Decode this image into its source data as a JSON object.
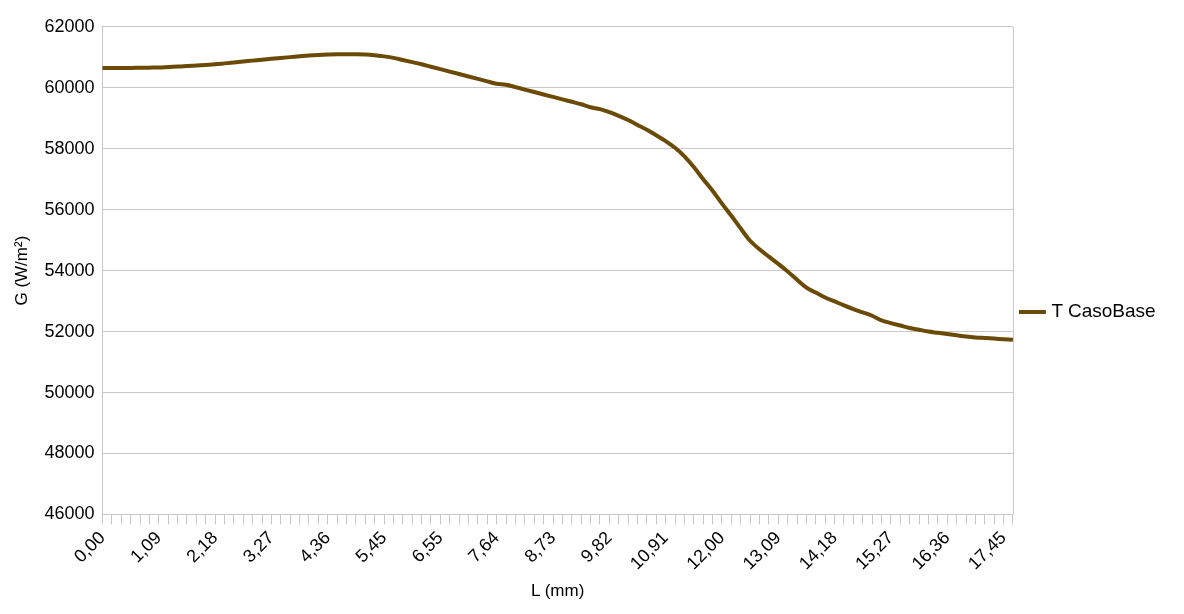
{
  "chart_data": {
    "type": "line",
    "xlabel": "L (mm)",
    "ylabel": "G (W/m²)",
    "categories": [
      "0,00",
      null,
      null,
      null,
      null,
      null,
      "1,09",
      null,
      null,
      null,
      null,
      null,
      "2,18",
      null,
      null,
      null,
      null,
      null,
      "3,27",
      null,
      null,
      null,
      null,
      null,
      "4,36",
      null,
      null,
      null,
      null,
      null,
      "5,45",
      null,
      null,
      null,
      null,
      null,
      "6,55",
      null,
      null,
      null,
      null,
      null,
      "7,64",
      null,
      null,
      null,
      null,
      null,
      "8,73",
      null,
      null,
      null,
      null,
      null,
      "9,82",
      null,
      null,
      null,
      null,
      null,
      "10,91",
      null,
      null,
      null,
      null,
      null,
      "12,00",
      null,
      null,
      null,
      null,
      null,
      "13,09",
      null,
      null,
      null,
      null,
      null,
      "14,18",
      null,
      null,
      null,
      null,
      null,
      "15,27",
      null,
      null,
      null,
      null,
      null,
      "16,36",
      null,
      null,
      null,
      null,
      null,
      "17,45",
      null
    ],
    "series": [
      {
        "name": "T CasoBase",
        "color": "#6b4a06",
        "values": [
          60650,
          60650,
          60650,
          60650,
          60655,
          60660,
          60665,
          60680,
          60695,
          60710,
          60730,
          60750,
          60770,
          60800,
          60830,
          60860,
          60890,
          60920,
          60950,
          60980,
          61005,
          61030,
          61055,
          61075,
          61090,
          61100,
          61100,
          61100,
          61095,
          61070,
          61030,
          60980,
          60910,
          60840,
          60770,
          60690,
          60610,
          60530,
          60450,
          60370,
          60290,
          60210,
          60130,
          60100,
          60020,
          59940,
          59860,
          59780,
          59700,
          59620,
          59540,
          59460,
          59360,
          59300,
          59200,
          59080,
          58940,
          58780,
          58620,
          58440,
          58250,
          58030,
          57750,
          57400,
          57000,
          56620,
          56200,
          55800,
          55380,
          54980,
          54700,
          54460,
          54220,
          53970,
          53700,
          53440,
          53280,
          53120,
          52990,
          52860,
          52740,
          52630,
          52520,
          52370,
          52280,
          52200,
          52120,
          52060,
          52000,
          51960,
          51920,
          51880,
          51840,
          51810,
          51790,
          51770,
          51750,
          51730
        ]
      }
    ],
    "ylim": [
      46000,
      62000
    ],
    "yticks": [
      46000,
      48000,
      50000,
      52000,
      54000,
      56000,
      58000,
      60000,
      62000
    ],
    "grid": "y",
    "legend": "right",
    "line_style": "solid",
    "marker": "none"
  }
}
